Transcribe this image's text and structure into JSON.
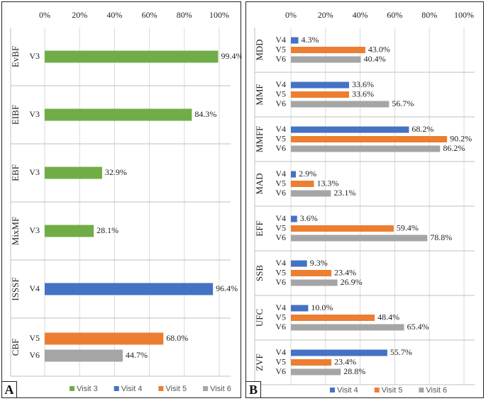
{
  "chart_data": [
    {
      "panel": "A",
      "type": "bar",
      "orientation": "horizontal",
      "xlim": [
        0,
        100
      ],
      "x_ticks": [
        "0%",
        "20%",
        "40%",
        "60%",
        "80%",
        "100%"
      ],
      "groups": [
        {
          "name": "EvBF",
          "bars": [
            {
              "label": "V3",
              "series": "Visit 3",
              "value": 99.4,
              "value_label": "99.4%"
            }
          ]
        },
        {
          "name": "EIBF",
          "bars": [
            {
              "label": "V3",
              "series": "Visit 3",
              "value": 84.3,
              "value_label": "84.3%"
            }
          ]
        },
        {
          "name": "EBF",
          "bars": [
            {
              "label": "V3",
              "series": "Visit 3",
              "value": 32.9,
              "value_label": "32.9%"
            }
          ]
        },
        {
          "name": "MixMF",
          "bars": [
            {
              "label": "V3",
              "series": "Visit 3",
              "value": 28.1,
              "value_label": "28.1%"
            }
          ]
        },
        {
          "name": "ISSSF",
          "bars": [
            {
              "label": "V4",
              "series": "Visit 4",
              "value": 96.4,
              "value_label": "96.4%"
            }
          ]
        },
        {
          "name": "CBF",
          "bars": [
            {
              "label": "V5",
              "series": "Visit 5",
              "value": 68.0,
              "value_label": "68.0%"
            },
            {
              "label": "V6",
              "series": "Visit 6",
              "value": 44.7,
              "value_label": "44.7%"
            }
          ]
        }
      ],
      "legend": [
        {
          "name": "Visit 3",
          "color": "#70ad47"
        },
        {
          "name": "Visit 4",
          "color": "#4472c4"
        },
        {
          "name": "Visit 5",
          "color": "#ed7d31"
        },
        {
          "name": "Visit 6",
          "color": "#a5a5a5"
        }
      ]
    },
    {
      "panel": "B",
      "type": "bar",
      "orientation": "horizontal",
      "xlim": [
        0,
        100
      ],
      "x_ticks": [
        "0%",
        "20%",
        "40%",
        "60%",
        "80%",
        "100%"
      ],
      "groups": [
        {
          "name": "MDD",
          "bars": [
            {
              "label": "V4",
              "series": "Visit 4",
              "value": 4.3,
              "value_label": "4.3%"
            },
            {
              "label": "V5",
              "series": "Visit 5",
              "value": 43.0,
              "value_label": "43.0%"
            },
            {
              "label": "V6",
              "series": "Visit 6",
              "value": 40.4,
              "value_label": "40.4%"
            }
          ]
        },
        {
          "name": "MMF",
          "bars": [
            {
              "label": "V4",
              "series": "Visit 4",
              "value": 33.6,
              "value_label": "33.6%"
            },
            {
              "label": "V5",
              "series": "Visit 5",
              "value": 33.6,
              "value_label": "33.6%"
            },
            {
              "label": "V6",
              "series": "Visit 6",
              "value": 56.7,
              "value_label": "56.7%"
            }
          ]
        },
        {
          "name": "MMFF",
          "bars": [
            {
              "label": "V4",
              "series": "Visit 4",
              "value": 68.2,
              "value_label": "68.2%"
            },
            {
              "label": "V5",
              "series": "Visit 5",
              "value": 90.2,
              "value_label": "90.2%"
            },
            {
              "label": "V6",
              "series": "Visit 6",
              "value": 86.2,
              "value_label": "86.2%"
            }
          ]
        },
        {
          "name": "MAD",
          "bars": [
            {
              "label": "V4",
              "series": "Visit 4",
              "value": 2.9,
              "value_label": "2.9%"
            },
            {
              "label": "V5",
              "series": "Visit 5",
              "value": 13.3,
              "value_label": "13.3%"
            },
            {
              "label": "V6",
              "series": "Visit 6",
              "value": 23.1,
              "value_label": "23.1%"
            }
          ]
        },
        {
          "name": "EFF",
          "bars": [
            {
              "label": "V4",
              "series": "Visit 4",
              "value": 3.6,
              "value_label": "3.6%"
            },
            {
              "label": "V5",
              "series": "Visit 5",
              "value": 59.4,
              "value_label": "59.4%"
            },
            {
              "label": "V6",
              "series": "Visit 6",
              "value": 78.8,
              "value_label": "78.8%"
            }
          ]
        },
        {
          "name": "SSB",
          "bars": [
            {
              "label": "V4",
              "series": "Visit 4",
              "value": 9.3,
              "value_label": "9.3%"
            },
            {
              "label": "V5",
              "series": "Visit 5",
              "value": 23.4,
              "value_label": "23.4%"
            },
            {
              "label": "V6",
              "series": "Visit 6",
              "value": 26.9,
              "value_label": "26.9%"
            }
          ]
        },
        {
          "name": "UFC",
          "bars": [
            {
              "label": "V4",
              "series": "Visit 4",
              "value": 10.0,
              "value_label": "10.0%"
            },
            {
              "label": "V5",
              "series": "Visit 5",
              "value": 48.4,
              "value_label": "48.4%"
            },
            {
              "label": "V6",
              "series": "Visit 6",
              "value": 65.4,
              "value_label": "65.4%"
            }
          ]
        },
        {
          "name": "ZVF",
          "bars": [
            {
              "label": "V4",
              "series": "Visit 4",
              "value": 55.7,
              "value_label": "55.7%"
            },
            {
              "label": "V5",
              "series": "Visit 5",
              "value": 23.4,
              "value_label": "23.4%"
            },
            {
              "label": "V6",
              "series": "Visit 6",
              "value": 28.8,
              "value_label": "28.8%"
            }
          ]
        }
      ],
      "legend": [
        {
          "name": "Visit 4",
          "color": "#4472c4"
        },
        {
          "name": "Visit 5",
          "color": "#ed7d31"
        },
        {
          "name": "Visit 6",
          "color": "#a5a5a5"
        }
      ]
    }
  ]
}
